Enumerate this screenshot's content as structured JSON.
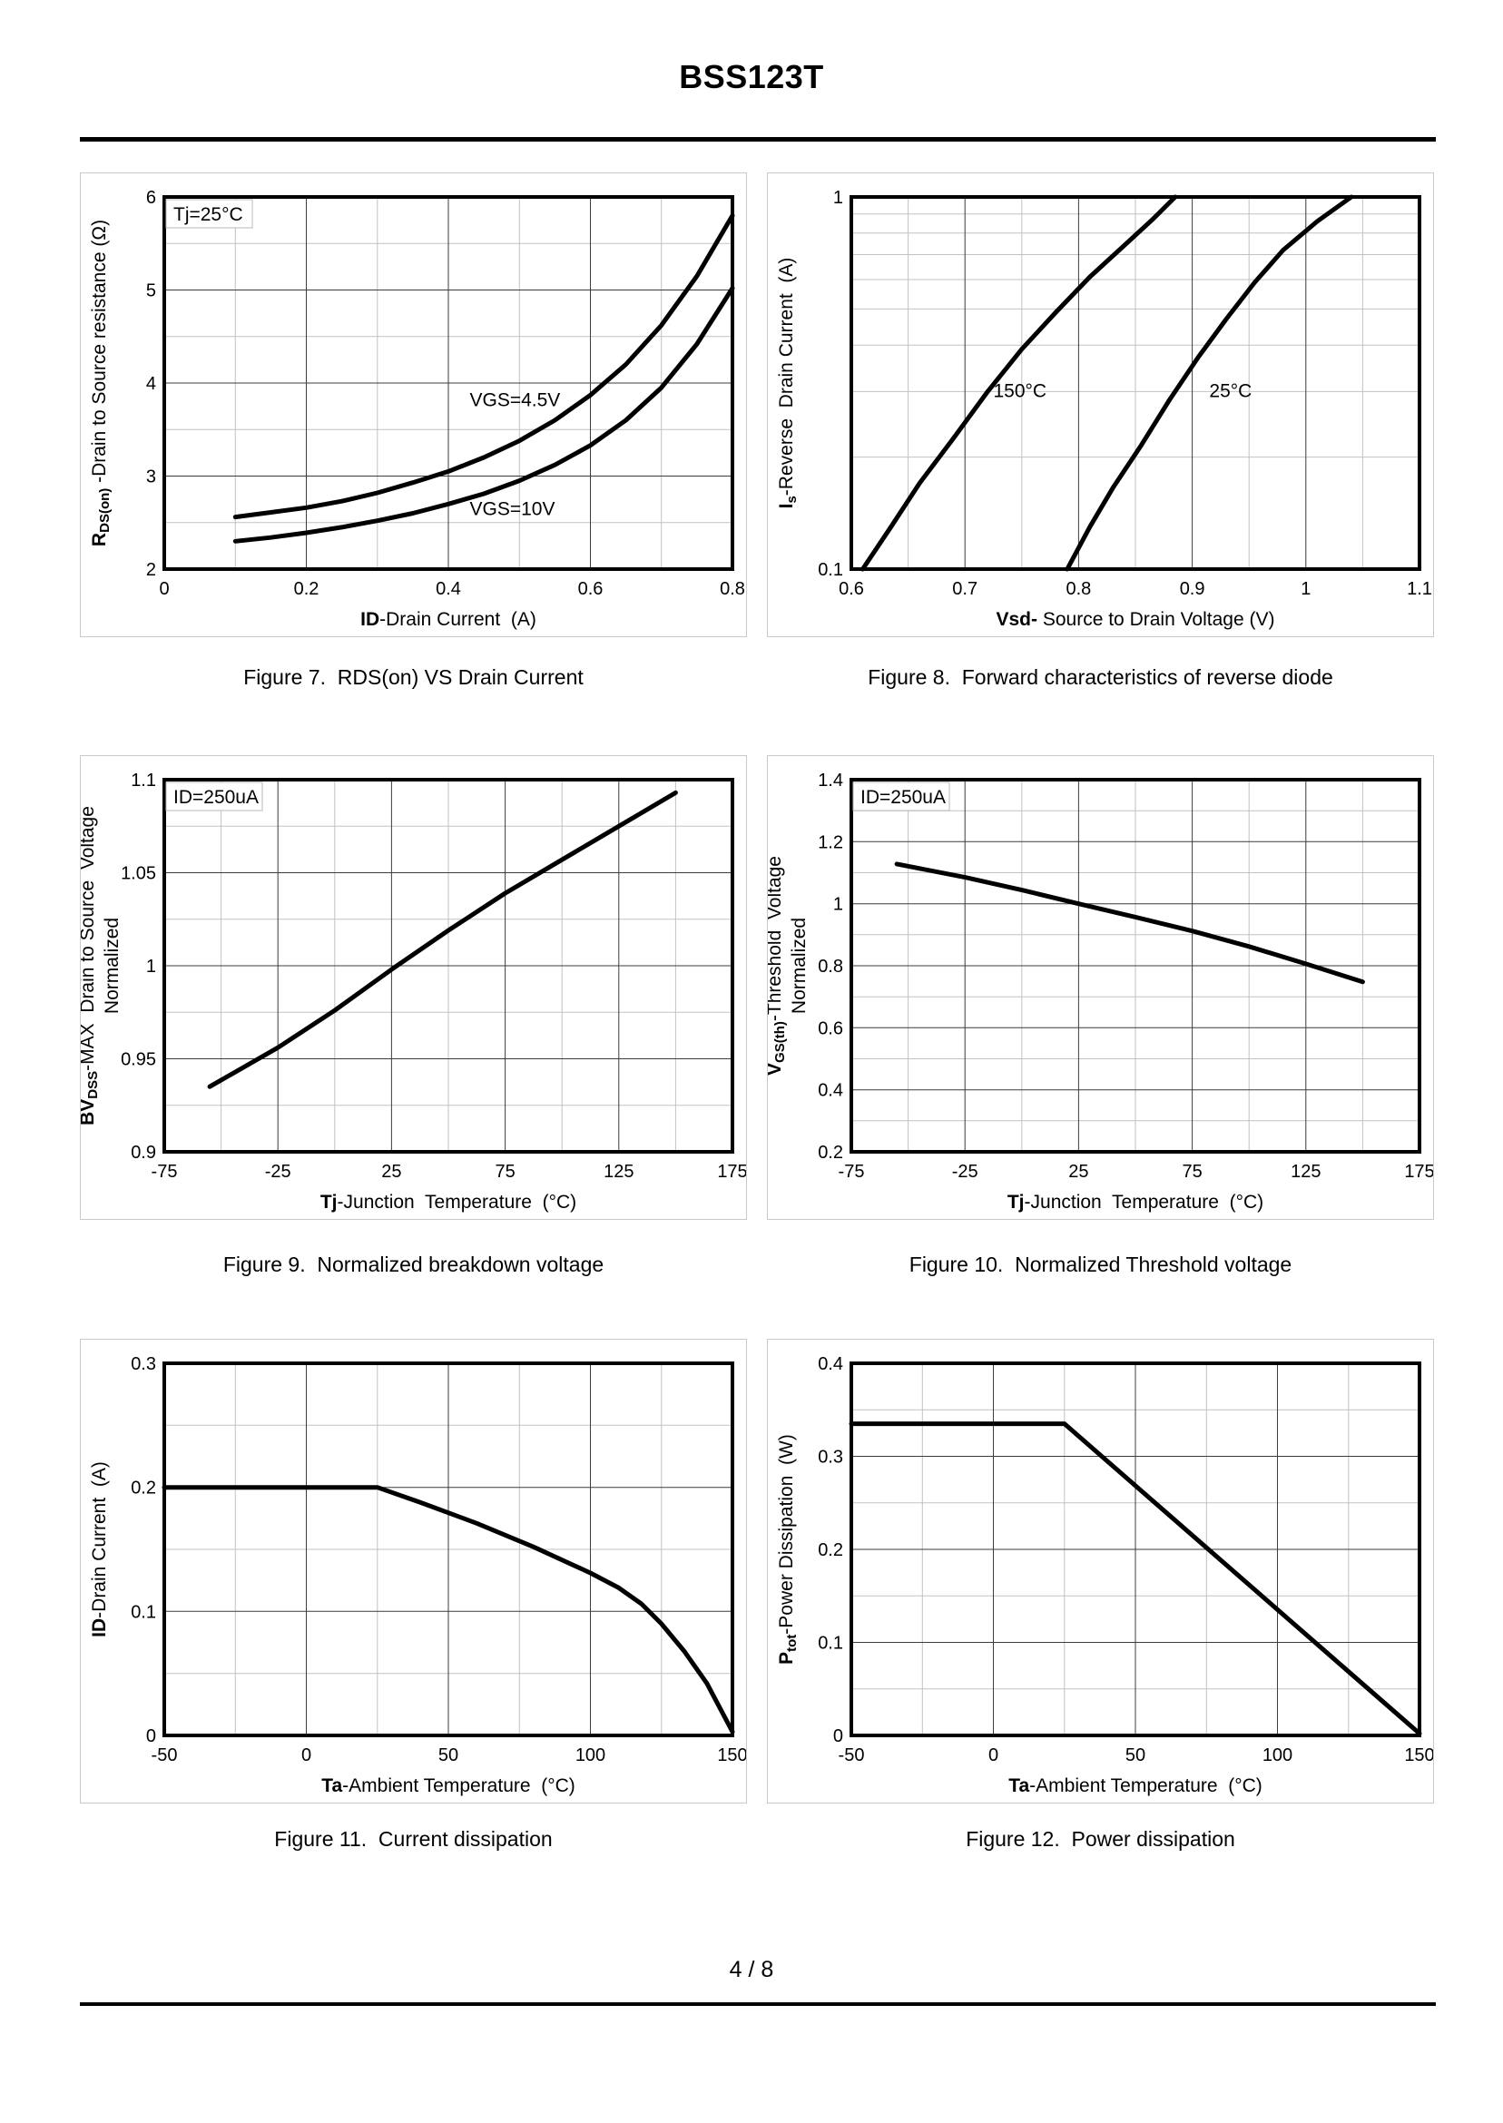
{
  "page": {
    "title": "BSS123T",
    "page_number": "4 / 8"
  },
  "chart_data": [
    {
      "type": "line",
      "caption": "Figure 7.  RDS(on) VS Drain Current",
      "annotation": "Tj=25°C",
      "x": {
        "min": 0,
        "max": 0.8,
        "label_bold": "ID",
        "label": "-Drain Current  (A)",
        "ticks": [
          0,
          0.2,
          0.4,
          0.6,
          0.8
        ],
        "tick_labels": [
          "0",
          "0.2",
          "0.4",
          "0.6",
          "0.8"
        ],
        "major_grid": [
          0.2,
          0.4,
          0.6
        ],
        "minor": [
          0.1,
          0.3,
          0.5,
          0.7
        ]
      },
      "y": {
        "min": 2,
        "max": 6,
        "scale": "linear",
        "label_segments": [
          {
            "t": "R",
            "b": 1
          },
          {
            "t": "DS(on)",
            "b": 1,
            "s": 1
          },
          {
            "t": " -Drain to Source resistance (Ω)"
          }
        ],
        "ticks": [
          2,
          3,
          4,
          5,
          6
        ],
        "tick_labels": [
          "2",
          "3",
          "4",
          "5",
          "6"
        ],
        "major_grid": [
          3,
          4,
          5
        ],
        "minor": [
          2.5,
          3.5,
          4.5,
          5.5
        ]
      },
      "series": [
        {
          "name": "VGS=4.5V",
          "label_at": [
            0.43,
            3.75
          ],
          "points": [
            [
              0.1,
              2.56
            ],
            [
              0.15,
              2.61
            ],
            [
              0.2,
              2.66
            ],
            [
              0.25,
              2.73
            ],
            [
              0.3,
              2.82
            ],
            [
              0.35,
              2.93
            ],
            [
              0.4,
              3.05
            ],
            [
              0.45,
              3.2
            ],
            [
              0.5,
              3.38
            ],
            [
              0.55,
              3.6
            ],
            [
              0.6,
              3.87
            ],
            [
              0.65,
              4.2
            ],
            [
              0.7,
              4.62
            ],
            [
              0.75,
              5.15
            ],
            [
              0.8,
              5.8
            ]
          ]
        },
        {
          "name": "VGS=10V",
          "label_at": [
            0.43,
            2.58
          ],
          "points": [
            [
              0.1,
              2.3
            ],
            [
              0.15,
              2.34
            ],
            [
              0.2,
              2.39
            ],
            [
              0.25,
              2.45
            ],
            [
              0.3,
              2.52
            ],
            [
              0.35,
              2.6
            ],
            [
              0.4,
              2.7
            ],
            [
              0.45,
              2.81
            ],
            [
              0.5,
              2.95
            ],
            [
              0.55,
              3.12
            ],
            [
              0.6,
              3.33
            ],
            [
              0.65,
              3.6
            ],
            [
              0.7,
              3.95
            ],
            [
              0.75,
              4.42
            ],
            [
              0.8,
              5.02
            ]
          ]
        }
      ]
    },
    {
      "type": "line",
      "caption": "Figure 8.  Forward characteristics of reverse diode",
      "x": {
        "min": 0.6,
        "max": 1.1,
        "label_bold": "Vsd-",
        "label": " Source to Drain Voltage (V)",
        "ticks": [
          0.6,
          0.7,
          0.8,
          0.9,
          1,
          1.1
        ],
        "tick_labels": [
          "0.6",
          "0.7",
          "0.8",
          "0.9",
          "1",
          "1.1"
        ],
        "major_grid": [
          0.7,
          0.8,
          0.9,
          1
        ],
        "minor": [
          0.65,
          0.75,
          0.85,
          0.95,
          1.05
        ]
      },
      "y": {
        "min": 0.1,
        "max": 1,
        "scale": "log",
        "label_segments": [
          {
            "t": "I",
            "b": 1
          },
          {
            "t": "s",
            "b": 1,
            "s": 1
          },
          {
            "t": "-Reverse  Drain Current  (A)"
          }
        ],
        "ticks": [
          1,
          0.1
        ],
        "tick_labels": [
          "1",
          "0.1"
        ],
        "major_grid": [],
        "minor": [
          0.2,
          0.3,
          0.4,
          0.5,
          0.6,
          0.7,
          0.8,
          0.9
        ]
      },
      "series": [
        {
          "name": "150°C",
          "label_at": [
            0.725,
            0.29
          ],
          "points": [
            [
              0.61,
              0.1
            ],
            [
              0.635,
              0.13
            ],
            [
              0.66,
              0.17
            ],
            [
              0.69,
              0.225
            ],
            [
              0.72,
              0.3
            ],
            [
              0.75,
              0.39
            ],
            [
              0.78,
              0.49
            ],
            [
              0.81,
              0.61
            ],
            [
              0.84,
              0.74
            ],
            [
              0.865,
              0.87
            ],
            [
              0.885,
              1.0
            ]
          ]
        },
        {
          "name": "25°C",
          "label_at": [
            0.915,
            0.29
          ],
          "points": [
            [
              0.79,
              0.1
            ],
            [
              0.81,
              0.13
            ],
            [
              0.83,
              0.165
            ],
            [
              0.855,
              0.215
            ],
            [
              0.88,
              0.285
            ],
            [
              0.905,
              0.37
            ],
            [
              0.93,
              0.47
            ],
            [
              0.955,
              0.59
            ],
            [
              0.98,
              0.72
            ],
            [
              1.01,
              0.86
            ],
            [
              1.04,
              1.0
            ]
          ]
        }
      ]
    },
    {
      "type": "line",
      "caption": "Figure 9.  Normalized breakdown voltage",
      "annotation": "ID=250uA",
      "x": {
        "min": -75,
        "max": 175,
        "label_bold": "Tj",
        "label": "-Junction  Temperature  (°C)",
        "ticks": [
          -75,
          -25,
          25,
          75,
          125,
          175
        ],
        "tick_labels": [
          "-75",
          "-25",
          "25",
          "75",
          "125",
          "175"
        ],
        "major_grid": [
          -25,
          25,
          75,
          125
        ],
        "minor": [
          -50,
          0,
          50,
          100,
          150
        ]
      },
      "y": {
        "min": 0.9,
        "max": 1.1,
        "scale": "linear",
        "label_segments": [
          {
            "t": "BV",
            "b": 1
          },
          {
            "t": "DSS",
            "b": 1,
            "s": 1
          },
          {
            "t": "-MAX  Drain to Source  Voltage"
          }
        ],
        "label2": "Normalized",
        "ticks": [
          0.9,
          0.95,
          1,
          1.05,
          1.1
        ],
        "tick_labels": [
          "0.9",
          "0.95",
          "1",
          "1.05",
          "1.1"
        ],
        "major_grid": [
          0.95,
          1,
          1.05
        ],
        "minor": [
          0.925,
          0.975,
          1.025,
          1.075
        ]
      },
      "series": [
        {
          "points": [
            [
              -55,
              0.935
            ],
            [
              -25,
              0.956
            ],
            [
              0,
              0.976
            ],
            [
              25,
              0.998
            ],
            [
              50,
              1.019
            ],
            [
              75,
              1.039
            ],
            [
              100,
              1.057
            ],
            [
              125,
              1.075
            ],
            [
              150,
              1.093
            ]
          ]
        }
      ]
    },
    {
      "type": "line",
      "caption": "Figure 10.  Normalized Threshold voltage",
      "annotation": "ID=250uA",
      "x": {
        "min": -75,
        "max": 175,
        "label_bold": "Tj",
        "label": "-Junction  Temperature  (°C)",
        "ticks": [
          -75,
          -25,
          25,
          75,
          125,
          175
        ],
        "tick_labels": [
          "-75",
          "-25",
          "25",
          "75",
          "125",
          "175"
        ],
        "major_grid": [
          -25,
          25,
          75,
          125
        ],
        "minor": [
          -50,
          0,
          50,
          100,
          150
        ]
      },
      "y": {
        "min": 0.2,
        "max": 1.4,
        "scale": "linear",
        "label_segments": [
          {
            "t": "V",
            "b": 1
          },
          {
            "t": "GS(th)",
            "b": 1,
            "s": 1
          },
          {
            "t": "-Threshold  Voltage"
          }
        ],
        "label2": "Normalized",
        "ticks": [
          0.2,
          0.4,
          0.6,
          0.8,
          1,
          1.2,
          1.4
        ],
        "tick_labels": [
          "0.2",
          "0.4",
          "0.6",
          "0.8",
          "1",
          "1.2",
          "1.4"
        ],
        "major_grid": [
          0.4,
          0.6,
          0.8,
          1,
          1.2
        ],
        "minor": [
          0.3,
          0.5,
          0.7,
          0.9,
          1.1,
          1.3
        ]
      },
      "series": [
        {
          "points": [
            [
              -55,
              1.128
            ],
            [
              -25,
              1.085
            ],
            [
              0,
              1.044
            ],
            [
              25,
              1.0
            ],
            [
              50,
              0.957
            ],
            [
              75,
              0.912
            ],
            [
              100,
              0.862
            ],
            [
              125,
              0.806
            ],
            [
              150,
              0.748
            ]
          ]
        }
      ]
    },
    {
      "type": "line",
      "caption": "Figure 11.  Current dissipation",
      "x": {
        "min": -50,
        "max": 150,
        "label_bold": "Ta",
        "label": "-Ambient Temperature  (°C)",
        "ticks": [
          -50,
          0,
          50,
          100,
          150
        ],
        "tick_labels": [
          "-50",
          "0",
          "50",
          "100",
          "150"
        ],
        "major_grid": [
          0,
          50,
          100
        ],
        "minor": [
          -25,
          25,
          75,
          125
        ]
      },
      "y": {
        "min": 0,
        "max": 0.3,
        "scale": "linear",
        "label_segments": [
          {
            "t": "ID",
            "b": 1
          },
          {
            "t": "-Drain Current  (A)"
          }
        ],
        "ticks": [
          0,
          0.1,
          0.2,
          0.3
        ],
        "tick_labels": [
          "0",
          "0.1",
          "0.2",
          "0.3"
        ],
        "major_grid": [
          0.1,
          0.2
        ],
        "minor": [
          0.05,
          0.15,
          0.25
        ]
      },
      "series": [
        {
          "points": [
            [
              -50,
              0.2
            ],
            [
              25,
              0.2
            ],
            [
              40,
              0.188
            ],
            [
              60,
              0.171
            ],
            [
              80,
              0.152
            ],
            [
              100,
              0.131
            ],
            [
              110,
              0.119
            ],
            [
              118,
              0.106
            ],
            [
              125,
              0.09
            ],
            [
              133,
              0.068
            ],
            [
              141,
              0.042
            ],
            [
              150,
              0.003
            ]
          ]
        }
      ]
    },
    {
      "type": "line",
      "caption": "Figure 12.  Power dissipation",
      "x": {
        "min": -50,
        "max": 150,
        "label_bold": "Ta",
        "label": "-Ambient Temperature  (°C)",
        "ticks": [
          -50,
          0,
          50,
          100,
          150
        ],
        "tick_labels": [
          "-50",
          "0",
          "50",
          "100",
          "150"
        ],
        "major_grid": [
          0,
          50,
          100
        ],
        "minor": [
          -25,
          25,
          75,
          125
        ]
      },
      "y": {
        "min": 0,
        "max": 0.4,
        "scale": "linear",
        "label_segments": [
          {
            "t": "P",
            "b": 1
          },
          {
            "t": "tot",
            "b": 1,
            "s": 1
          },
          {
            "t": "-Power Dissipation  (W)"
          }
        ],
        "ticks": [
          0,
          0.1,
          0.2,
          0.3,
          0.4
        ],
        "tick_labels": [
          "0",
          "0.1",
          "0.2",
          "0.3",
          "0.4"
        ],
        "major_grid": [
          0.1,
          0.2,
          0.3
        ],
        "minor": [
          0.05,
          0.15,
          0.25,
          0.35
        ]
      },
      "series": [
        {
          "points": [
            [
              -50,
              0.335
            ],
            [
              25,
              0.335
            ],
            [
              150,
              0.002
            ]
          ]
        }
      ]
    }
  ]
}
